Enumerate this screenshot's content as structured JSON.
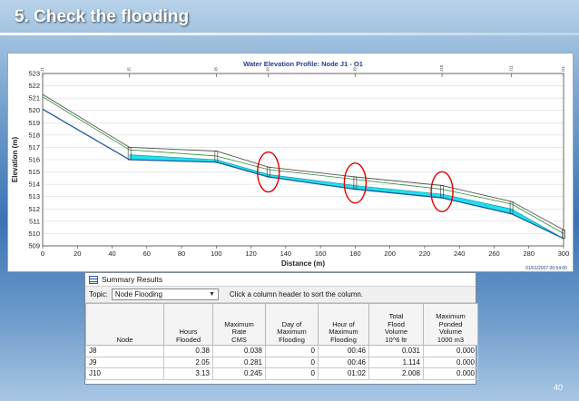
{
  "slide": {
    "title": "5. Check the flooding",
    "page_number": "40"
  },
  "chart_data": {
    "type": "line",
    "title": "Water Elevation Profile: Node J1 - O1",
    "xlabel": "Distance (m)",
    "ylabel": "Elevation (m)",
    "xlim": [
      0,
      300
    ],
    "ylim": [
      509,
      523
    ],
    "x_ticks": [
      "0",
      "20",
      "40",
      "60",
      "80",
      "100",
      "120",
      "140",
      "160",
      "180",
      "200",
      "220",
      "240",
      "260",
      "280",
      "300"
    ],
    "y_ticks": [
      "509",
      "510",
      "511",
      "512",
      "513",
      "514",
      "515",
      "516",
      "517",
      "518",
      "519",
      "520",
      "521",
      "522",
      "523"
    ],
    "node_labels": [
      {
        "label": "J1",
        "x": 0
      },
      {
        "label": "J5",
        "x": 50
      },
      {
        "label": "J8",
        "x": 100
      },
      {
        "label": "J9",
        "x": 130
      },
      {
        "label": "J9",
        "x": 180
      },
      {
        "label": "J10",
        "x": 230
      },
      {
        "label": "J11",
        "x": 270
      },
      {
        "label": "O1",
        "x": 300
      }
    ],
    "timestamp": "01/01/2007 00:54:00",
    "series": [
      {
        "values": [
          [
            0,
            520.1
          ],
          [
            50,
            516.0
          ],
          [
            100,
            515.8
          ],
          [
            130,
            514.6
          ],
          [
            180,
            513.6
          ],
          [
            230,
            512.9
          ],
          [
            270,
            511.6
          ],
          [
            300,
            509.6
          ]
        ]
      },
      {
        "values": [
          [
            0,
            521.3
          ],
          [
            50,
            517.0
          ],
          [
            100,
            516.7
          ],
          [
            130,
            515.4
          ],
          [
            180,
            514.6
          ],
          [
            230,
            513.9
          ],
          [
            270,
            512.6
          ],
          [
            300,
            510.3
          ]
        ]
      },
      {
        "values": [
          [
            0,
            521.1
          ],
          [
            50,
            516.8
          ],
          [
            100,
            516.3
          ],
          [
            130,
            515.2
          ],
          [
            180,
            514.4
          ],
          [
            230,
            513.6
          ],
          [
            270,
            512.4
          ],
          [
            300,
            510.0
          ]
        ]
      },
      {
        "values": [
          [
            50,
            516.4
          ],
          [
            100,
            516.0
          ],
          [
            130,
            514.8
          ],
          [
            180,
            513.9
          ],
          [
            230,
            513.2
          ],
          [
            270,
            512.0
          ],
          [
            300,
            509.6
          ]
        ]
      }
    ],
    "colors": {
      "water": "#1fe0ec",
      "crown": "#555555",
      "invert": "#1e5aa0",
      "ground": "#2e8b2e",
      "highlight": "#e00000"
    },
    "flooded_nodes_circled": [
      130,
      180,
      230
    ]
  },
  "summary": {
    "window_title": "Summary Results",
    "topic_label": "Topic:",
    "topic_value": "Node Flooding",
    "hint": "Click a column header to sort the column.",
    "columns": [
      [
        "Node"
      ],
      [
        "Hours",
        "Flooded"
      ],
      [
        "Maximum",
        "Rate",
        "CMS"
      ],
      [
        "Day of",
        "Maximum",
        "Flooding"
      ],
      [
        "Hour of",
        "Maximum",
        "Flooding"
      ],
      [
        "Total",
        "Flood",
        "Volume",
        "10^6 ltr"
      ],
      [
        "Maximum",
        "Ponded",
        "Volume",
        "1000 m3"
      ]
    ],
    "rows": [
      [
        "J8",
        "0.38",
        "0.038",
        "0",
        "00:46",
        "0.031",
        "0.000"
      ],
      [
        "J9",
        "2.05",
        "0.281",
        "0",
        "00:46",
        "1.114",
        "0.000"
      ],
      [
        "J10",
        "3.13",
        "0.245",
        "0",
        "01:02",
        "2.008",
        "0.000"
      ]
    ]
  }
}
